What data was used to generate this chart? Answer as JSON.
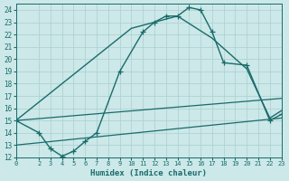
{
  "xlabel": "Humidex (Indice chaleur)",
  "bg_color": "#cce8e8",
  "line_color": "#1a6b6b",
  "grid_color": "#aacfcf",
  "xlim": [
    0,
    23
  ],
  "ylim": [
    12,
    24.5
  ],
  "xticks": [
    0,
    2,
    3,
    4,
    5,
    6,
    7,
    8,
    9,
    10,
    11,
    12,
    13,
    14,
    15,
    16,
    17,
    18,
    19,
    20,
    21,
    22,
    23
  ],
  "yticks": [
    12,
    13,
    14,
    15,
    16,
    17,
    18,
    19,
    20,
    21,
    22,
    23,
    24
  ],
  "series": [
    {
      "x": [
        0,
        2,
        3,
        4,
        5,
        6,
        7,
        9,
        11,
        12,
        13,
        14,
        15,
        16,
        17,
        18,
        20,
        22,
        23
      ],
      "y": [
        15,
        14,
        12.7,
        12.1,
        12.5,
        13.3,
        14.0,
        19.0,
        22.2,
        23.0,
        23.5,
        23.5,
        24.2,
        24.0,
        22.2,
        19.7,
        19.5,
        15.0,
        15.5
      ],
      "marker": "+",
      "markersize": 4,
      "linewidth": 1.0
    },
    {
      "x": [
        0,
        10,
        14,
        17,
        20,
        21,
        22,
        23
      ],
      "y": [
        15,
        22.5,
        23.5,
        21.7,
        19.2,
        17.2,
        15.2,
        15.8
      ],
      "marker": null,
      "markersize": 0,
      "linewidth": 1.0
    },
    {
      "x": [
        0,
        23
      ],
      "y": [
        15.0,
        16.8
      ],
      "marker": null,
      "markersize": 0,
      "linewidth": 0.9
    },
    {
      "x": [
        0,
        23
      ],
      "y": [
        13.0,
        15.2
      ],
      "marker": null,
      "markersize": 0,
      "linewidth": 0.9
    }
  ]
}
